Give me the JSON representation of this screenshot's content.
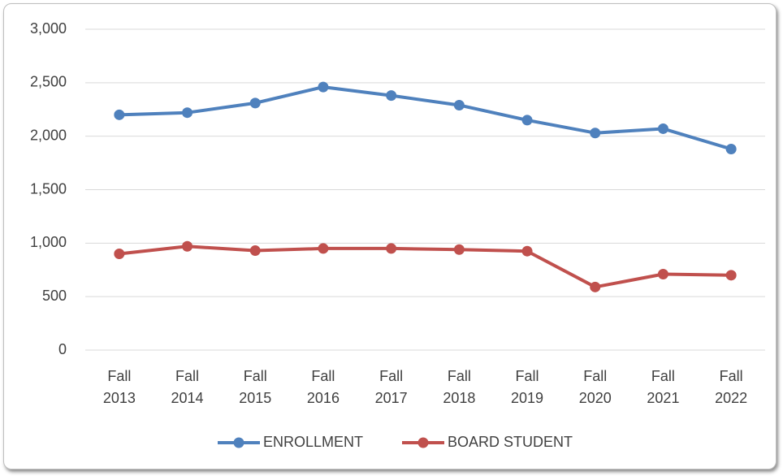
{
  "chart_data": {
    "type": "line",
    "categories": [
      "Fall 2013",
      "Fall 2014",
      "Fall 2015",
      "Fall 2016",
      "Fall 2017",
      "Fall 2018",
      "Fall 2019",
      "Fall 2020",
      "Fall 2021",
      "Fall 2022"
    ],
    "series": [
      {
        "name": "ENROLLMENT",
        "color": "#4f81bd",
        "values": [
          2200,
          2220,
          2310,
          2460,
          2380,
          2290,
          2150,
          2030,
          2070,
          1880
        ]
      },
      {
        "name": "BOARD STUDENT",
        "color": "#c0504d",
        "values": [
          900,
          970,
          930,
          950,
          950,
          940,
          925,
          590,
          710,
          700
        ]
      }
    ],
    "ylim": [
      0,
      3000
    ],
    "yticks": [
      0,
      500,
      {
        "value": 1000,
        "label": "1,000"
      },
      {
        "value": 1500,
        "label": "1,500"
      },
      {
        "value": 2000,
        "label": "2,000"
      },
      {
        "value": 2500,
        "label": "2,500"
      },
      {
        "value": 3000,
        "label": "3,000"
      }
    ],
    "grid": true,
    "legend": "bottom"
  }
}
